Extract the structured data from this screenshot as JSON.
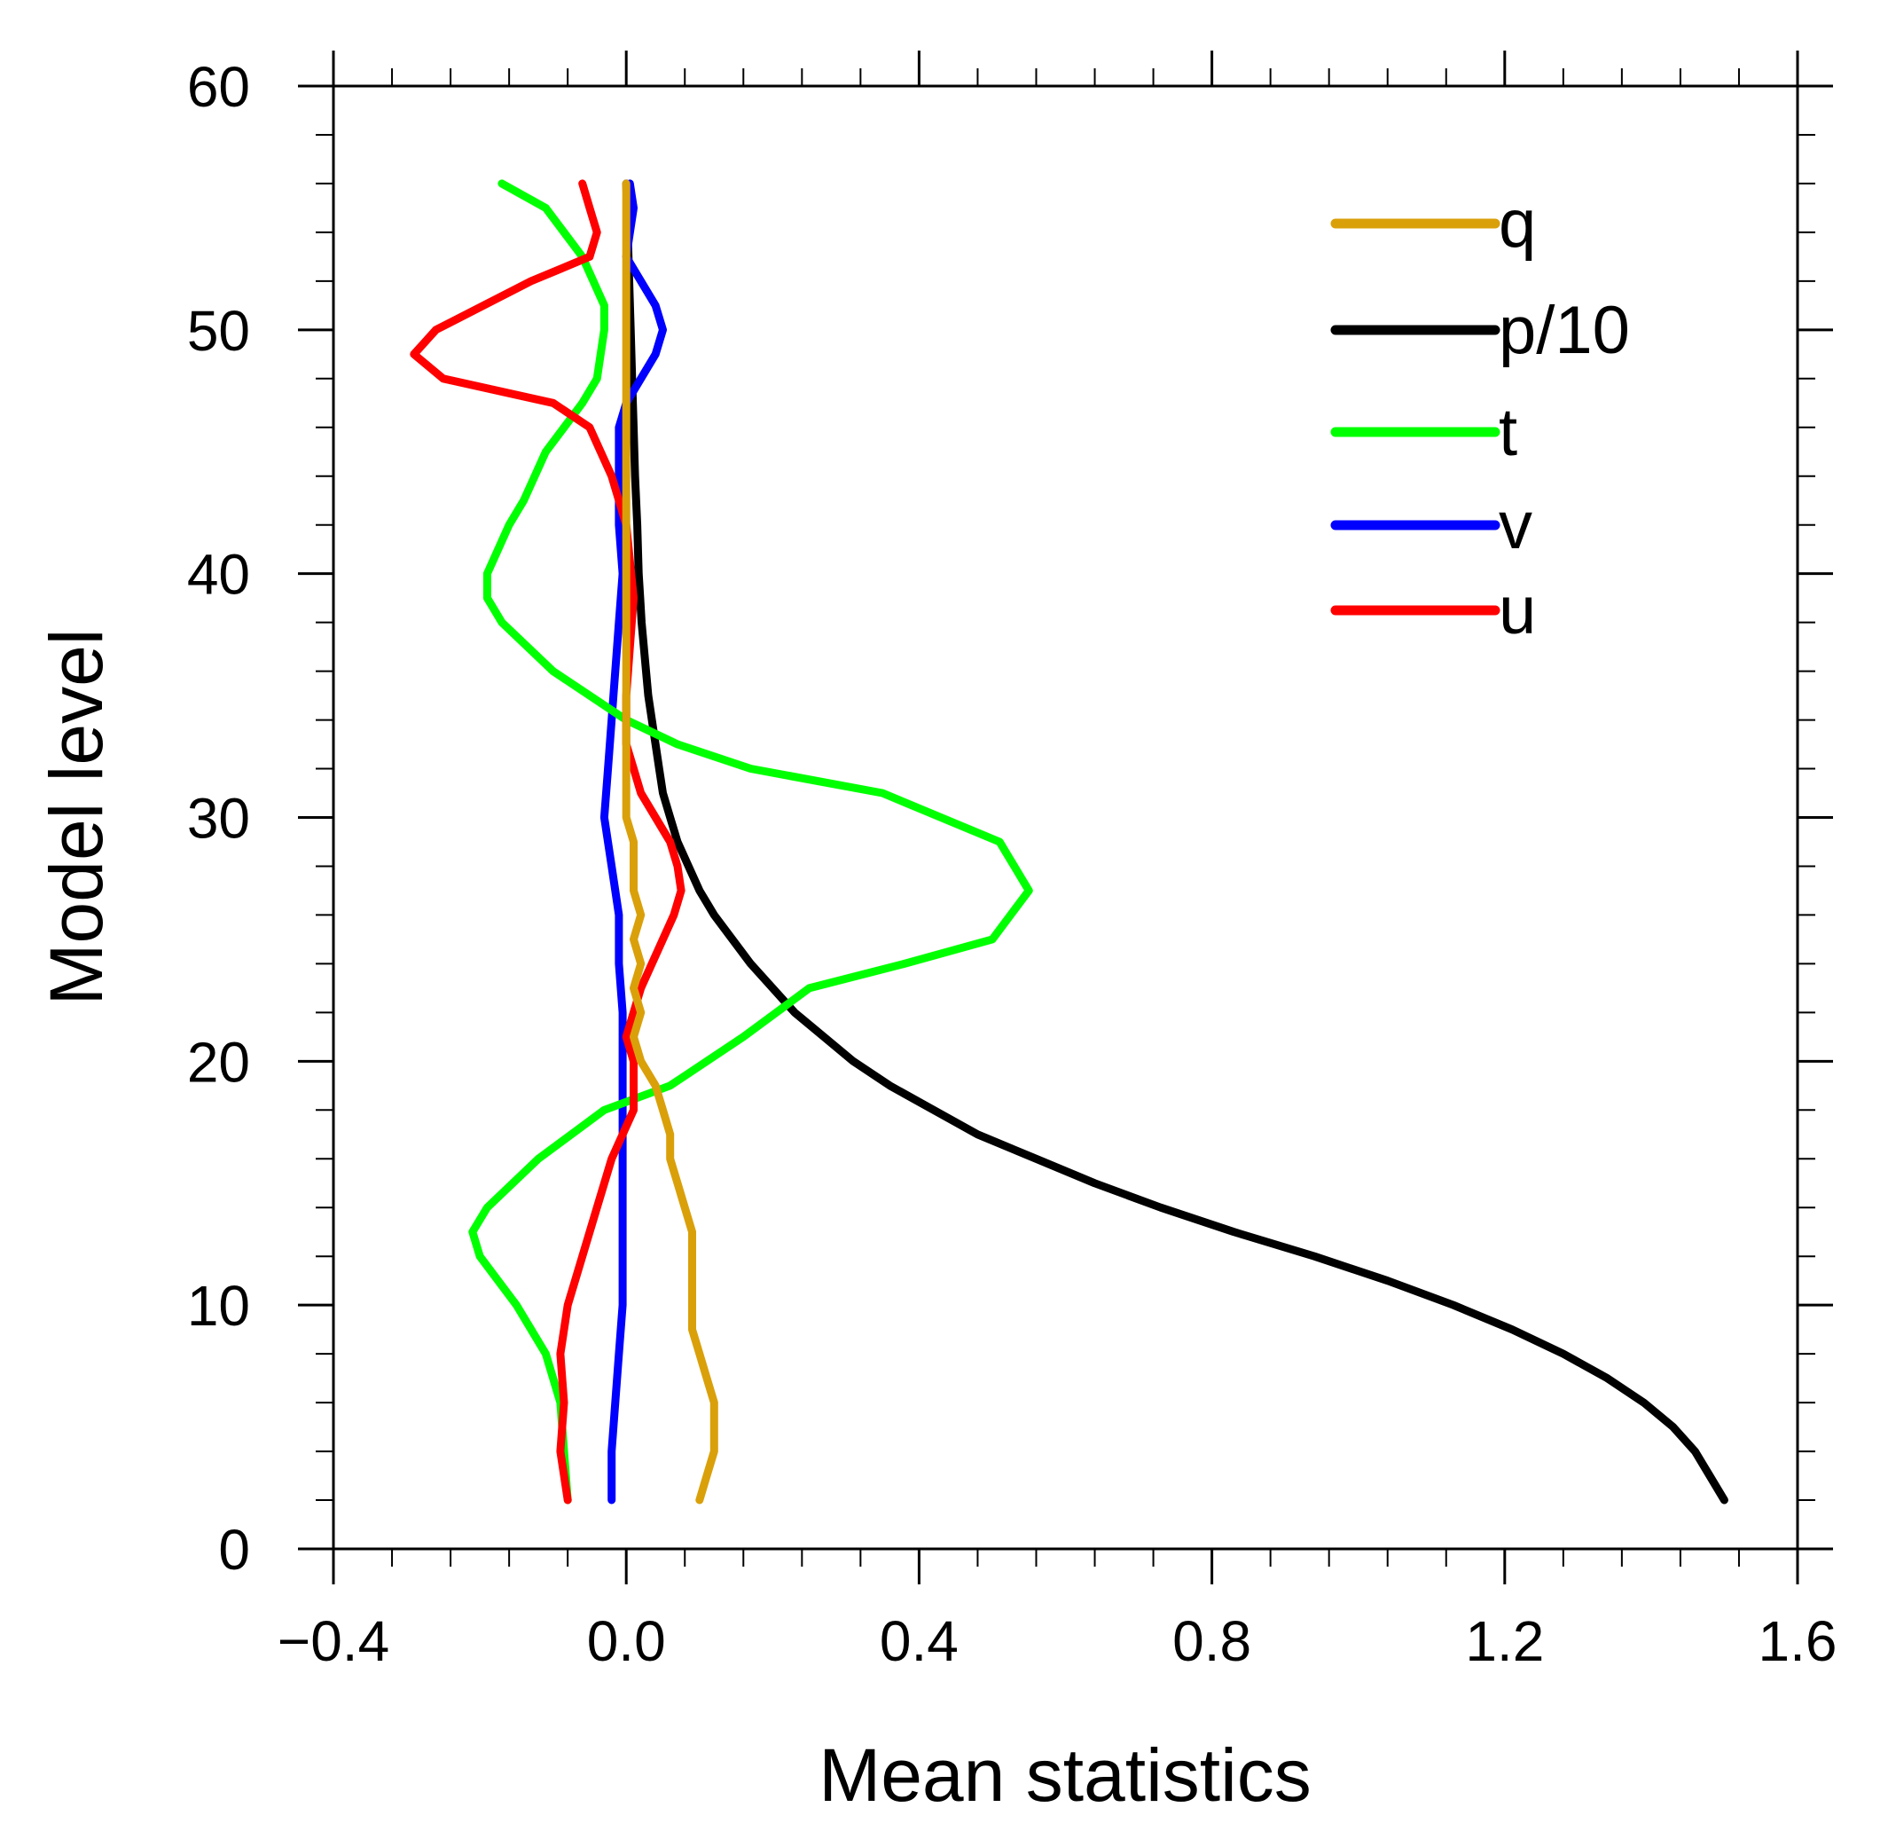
{
  "chart_data": {
    "type": "line",
    "xlabel": "Mean statistics",
    "ylabel": "Model level",
    "xlim": [
      -0.4,
      1.6
    ],
    "ylim": [
      0,
      60
    ],
    "xticks": [
      -0.4,
      0.0,
      0.4,
      0.8,
      1.2,
      1.6
    ],
    "xtick_labels": [
      "−0.4",
      "0.0",
      "0.4",
      "0.8",
      "1.2",
      "1.6"
    ],
    "yticks": [
      0,
      10,
      20,
      30,
      40,
      50,
      60
    ],
    "ytick_labels": [
      "0",
      "10",
      "20",
      "30",
      "40",
      "50",
      "60"
    ],
    "grid": false,
    "legend_position": "top-right",
    "series": [
      {
        "name": "q",
        "color": "#DAA00A",
        "points": [
          [
            0.1,
            2
          ],
          [
            0.11,
            3
          ],
          [
            0.12,
            4
          ],
          [
            0.12,
            5
          ],
          [
            0.12,
            6
          ],
          [
            0.11,
            7
          ],
          [
            0.1,
            8
          ],
          [
            0.09,
            9
          ],
          [
            0.09,
            10
          ],
          [
            0.09,
            11
          ],
          [
            0.09,
            12
          ],
          [
            0.09,
            13
          ],
          [
            0.08,
            14
          ],
          [
            0.07,
            15
          ],
          [
            0.06,
            16
          ],
          [
            0.06,
            17
          ],
          [
            0.05,
            18
          ],
          [
            0.04,
            19
          ],
          [
            0.02,
            20
          ],
          [
            0.01,
            21
          ],
          [
            0.02,
            22
          ],
          [
            0.01,
            23
          ],
          [
            0.02,
            24
          ],
          [
            0.01,
            25
          ],
          [
            0.02,
            26
          ],
          [
            0.01,
            27
          ],
          [
            0.01,
            28
          ],
          [
            0.01,
            29
          ],
          [
            0.0,
            30
          ],
          [
            0.0,
            32
          ],
          [
            0.0,
            34
          ],
          [
            0.0,
            36
          ],
          [
            0.0,
            38
          ],
          [
            0.0,
            40
          ],
          [
            0.0,
            42
          ],
          [
            0.0,
            44
          ],
          [
            0.0,
            46
          ],
          [
            0.0,
            48
          ],
          [
            0.0,
            50
          ],
          [
            0.0,
            52
          ],
          [
            0.0,
            54
          ],
          [
            0.0,
            56
          ]
        ]
      },
      {
        "name": "p/10",
        "color": "#000000",
        "points": [
          [
            1.5,
            2
          ],
          [
            1.48,
            3
          ],
          [
            1.46,
            4
          ],
          [
            1.43,
            5
          ],
          [
            1.39,
            6
          ],
          [
            1.34,
            7
          ],
          [
            1.28,
            8
          ],
          [
            1.21,
            9
          ],
          [
            1.13,
            10
          ],
          [
            1.04,
            11
          ],
          [
            0.94,
            12
          ],
          [
            0.83,
            13
          ],
          [
            0.73,
            14
          ],
          [
            0.64,
            15
          ],
          [
            0.56,
            16
          ],
          [
            0.48,
            17
          ],
          [
            0.42,
            18
          ],
          [
            0.36,
            19
          ],
          [
            0.31,
            20
          ],
          [
            0.27,
            21
          ],
          [
            0.23,
            22
          ],
          [
            0.2,
            23
          ],
          [
            0.17,
            24
          ],
          [
            0.145,
            25
          ],
          [
            0.12,
            26
          ],
          [
            0.1,
            27
          ],
          [
            0.085,
            28
          ],
          [
            0.07,
            29
          ],
          [
            0.06,
            30
          ],
          [
            0.05,
            31
          ],
          [
            0.045,
            32
          ],
          [
            0.04,
            33
          ],
          [
            0.035,
            34
          ],
          [
            0.03,
            35
          ],
          [
            0.027,
            36
          ],
          [
            0.024,
            37
          ],
          [
            0.021,
            38
          ],
          [
            0.019,
            39
          ],
          [
            0.017,
            40
          ],
          [
            0.015,
            42
          ],
          [
            0.012,
            44
          ],
          [
            0.01,
            46
          ],
          [
            0.008,
            48
          ],
          [
            0.006,
            50
          ],
          [
            0.004,
            52
          ],
          [
            0.002,
            54
          ],
          [
            0.0,
            56
          ]
        ]
      },
      {
        "name": "t",
        "color": "#00FF00",
        "points": [
          [
            -0.08,
            2
          ],
          [
            -0.085,
            4
          ],
          [
            -0.09,
            6
          ],
          [
            -0.11,
            8
          ],
          [
            -0.15,
            10
          ],
          [
            -0.2,
            12
          ],
          [
            -0.21,
            13
          ],
          [
            -0.19,
            14
          ],
          [
            -0.12,
            16
          ],
          [
            -0.03,
            18
          ],
          [
            0.06,
            19
          ],
          [
            0.16,
            21
          ],
          [
            0.25,
            23
          ],
          [
            0.38,
            24
          ],
          [
            0.5,
            25
          ],
          [
            0.55,
            27
          ],
          [
            0.51,
            29
          ],
          [
            0.35,
            31
          ],
          [
            0.17,
            32
          ],
          [
            0.07,
            33
          ],
          [
            0.0,
            34
          ],
          [
            -0.1,
            36
          ],
          [
            -0.17,
            38
          ],
          [
            -0.19,
            39
          ],
          [
            -0.19,
            40
          ],
          [
            -0.16,
            42
          ],
          [
            -0.14,
            43
          ],
          [
            -0.11,
            45
          ],
          [
            -0.06,
            47
          ],
          [
            -0.04,
            48
          ],
          [
            -0.03,
            50
          ],
          [
            -0.03,
            51
          ],
          [
            -0.06,
            53
          ],
          [
            -0.11,
            55
          ],
          [
            -0.17,
            56
          ]
        ]
      },
      {
        "name": "v",
        "color": "#0000FF",
        "points": [
          [
            -0.02,
            2
          ],
          [
            -0.02,
            4
          ],
          [
            -0.015,
            6
          ],
          [
            -0.01,
            8
          ],
          [
            -0.005,
            10
          ],
          [
            -0.005,
            12
          ],
          [
            -0.005,
            14
          ],
          [
            -0.005,
            16
          ],
          [
            -0.005,
            18
          ],
          [
            -0.005,
            20
          ],
          [
            -0.005,
            22
          ],
          [
            -0.01,
            24
          ],
          [
            -0.01,
            26
          ],
          [
            -0.02,
            28
          ],
          [
            -0.03,
            30
          ],
          [
            -0.025,
            32
          ],
          [
            -0.02,
            34
          ],
          [
            -0.015,
            36
          ],
          [
            -0.01,
            38
          ],
          [
            -0.005,
            40
          ],
          [
            -0.01,
            42
          ],
          [
            -0.01,
            44
          ],
          [
            -0.01,
            46
          ],
          [
            0.0,
            47
          ],
          [
            0.02,
            48
          ],
          [
            0.04,
            49
          ],
          [
            0.05,
            50
          ],
          [
            0.04,
            51
          ],
          [
            0.02,
            52
          ],
          [
            0.0,
            53
          ],
          [
            0.01,
            55
          ],
          [
            0.005,
            56
          ]
        ]
      },
      {
        "name": "u",
        "color": "#FF0000",
        "points": [
          [
            -0.08,
            2
          ],
          [
            -0.09,
            4
          ],
          [
            -0.085,
            6
          ],
          [
            -0.09,
            8
          ],
          [
            -0.08,
            10
          ],
          [
            -0.06,
            12
          ],
          [
            -0.04,
            14
          ],
          [
            -0.02,
            16
          ],
          [
            0.01,
            18
          ],
          [
            0.01,
            20
          ],
          [
            0.0,
            21
          ],
          [
            0.02,
            23
          ],
          [
            0.05,
            25
          ],
          [
            0.065,
            26
          ],
          [
            0.075,
            27
          ],
          [
            0.07,
            28
          ],
          [
            0.06,
            29
          ],
          [
            0.04,
            30
          ],
          [
            0.02,
            31
          ],
          [
            0.01,
            32
          ],
          [
            0.0,
            33
          ],
          [
            0.0,
            35
          ],
          [
            0.005,
            37
          ],
          [
            0.01,
            39
          ],
          [
            0.0,
            42
          ],
          [
            -0.02,
            44
          ],
          [
            -0.05,
            46
          ],
          [
            -0.1,
            47
          ],
          [
            -0.25,
            48
          ],
          [
            -0.29,
            49
          ],
          [
            -0.26,
            50
          ],
          [
            -0.13,
            52
          ],
          [
            -0.05,
            53
          ],
          [
            -0.04,
            54
          ],
          [
            -0.05,
            55
          ],
          [
            -0.06,
            56
          ]
        ]
      }
    ],
    "legend_order": [
      "q",
      "p/10",
      "t",
      "v",
      "u"
    ]
  }
}
